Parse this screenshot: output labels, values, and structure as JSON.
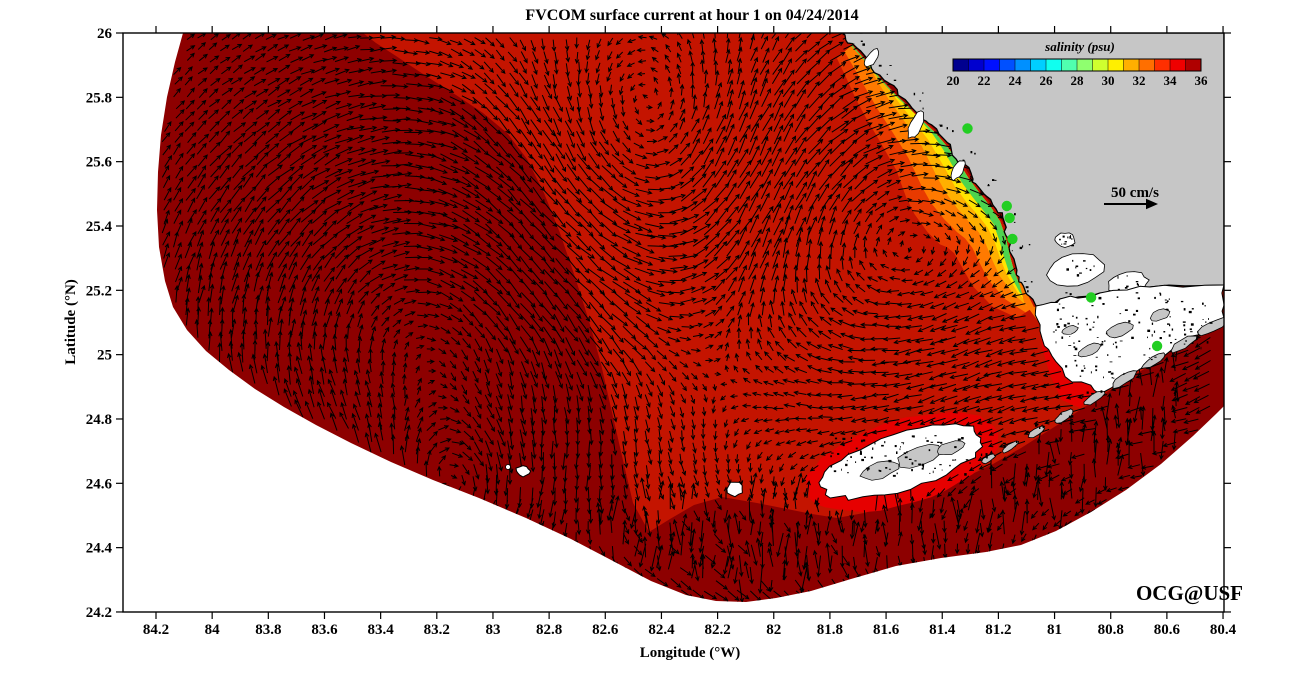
{
  "chart_data": {
    "type": "heatmap",
    "subtype": "coastal ocean model salinity field with surface current vector arrows",
    "title": "FVCOM surface current at hour 1 on 04/24/2014",
    "model": "FVCOM",
    "forecast_hour": 1,
    "date": "04/24/2014",
    "xlabel": "Longitude (°W)",
    "ylabel": "Latitude (°N)",
    "x_ticks": [
      84.2,
      84,
      83.8,
      83.6,
      83.4,
      83.2,
      83,
      82.8,
      82.6,
      82.4,
      82.2,
      82,
      81.8,
      81.6,
      81.4,
      81.2,
      81,
      80.8,
      80.6,
      80.4
    ],
    "y_ticks": [
      26,
      25.8,
      25.6,
      25.4,
      25.2,
      25,
      24.8,
      24.6,
      24.4,
      24.2
    ],
    "xlim_degW": [
      84.32,
      80.4
    ],
    "ylim_degN": [
      24.2,
      26
    ],
    "grid": false,
    "colorbar": {
      "label": "salinity (psu)",
      "min": 20,
      "max": 36,
      "ticks": [
        20,
        22,
        24,
        26,
        28,
        30,
        32,
        34,
        36
      ],
      "position": "top-right",
      "colors": [
        "#00008F",
        "#0000CF",
        "#0010FF",
        "#0050FF",
        "#0090FF",
        "#00CFFF",
        "#10FFEF",
        "#50FFAF",
        "#8FFF6F",
        "#CFFF2F",
        "#FFEF00",
        "#FFAF00",
        "#FF6F00",
        "#FF2F00",
        "#EF0000",
        "#AF0000"
      ]
    },
    "vector_scale": {
      "label": "50 cm/s",
      "value_cm_s": 50
    },
    "watermark": "OCG@USF",
    "watermark_color": "#FF0000",
    "land_color": "#C6C6C6",
    "vector_color": "#000000",
    "salinity_regions": [
      {
        "region": "offshore Gulf of Mexico (most of domain)",
        "approx_salinity_psu": 36,
        "color": "#8D0000"
      },
      {
        "region": "mid-shelf tongue north-center and Florida Bay side of Keys",
        "approx_salinity_psu": 35,
        "color": "#C41400"
      },
      {
        "region": "inner shelf band along southwest Florida coast",
        "approx_salinity_psu": 34,
        "color": "#E83A00"
      },
      {
        "region": "nearshore band",
        "approx_salinity_psu": 33,
        "color": "#FF7A00"
      },
      {
        "region": "coastal band",
        "approx_salinity_psu": 31,
        "color": "#FFB000"
      },
      {
        "region": "coastal band at river mouths",
        "approx_salinity_psu": 30,
        "color": "#FFE400"
      },
      {
        "region": "river plume strip at Everglades coast",
        "approx_salinity_psu": 28,
        "color": "#4ED34E"
      }
    ],
    "river_mouth_markers": {
      "color": "#22CE22",
      "points_degW_degN": [
        [
          81.31,
          25.703
        ],
        [
          81.17,
          25.462
        ],
        [
          81.16,
          25.425
        ],
        [
          81.15,
          25.36
        ],
        [
          80.87,
          25.178
        ],
        [
          80.635,
          25.027
        ]
      ]
    }
  }
}
